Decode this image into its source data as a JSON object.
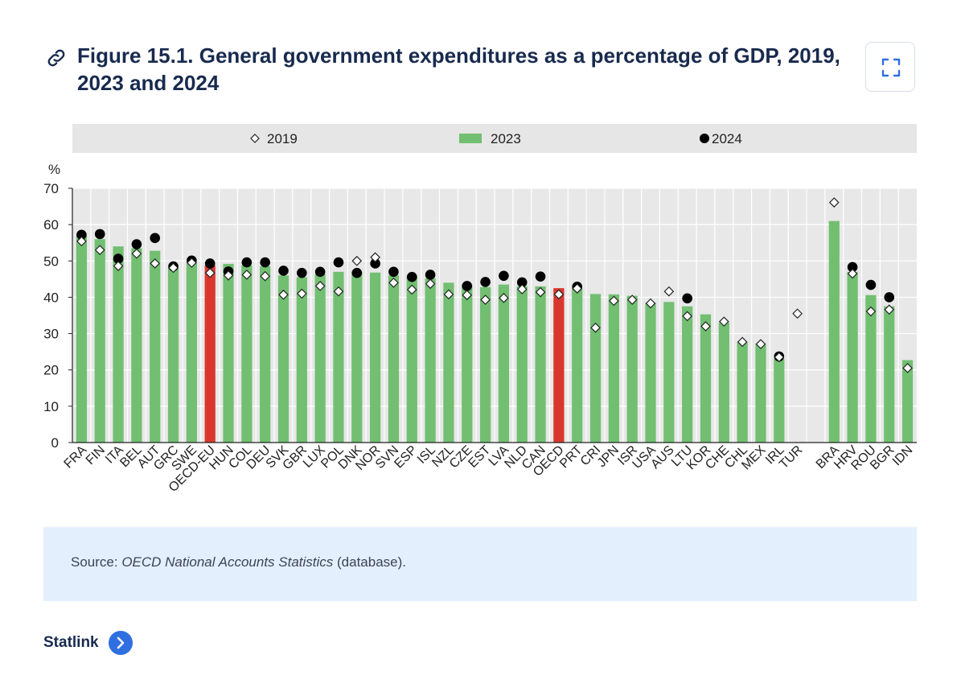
{
  "header": {
    "title": "Figure 15.1. General government expenditures as a percentage of GDP, 2019, 2023 and 2024"
  },
  "source": {
    "prefix": "Source: ",
    "database": "OECD National Accounts Statistics",
    "suffix": " (database)."
  },
  "statlink": {
    "label": "Statlink"
  },
  "chart_data": {
    "type": "bar",
    "title": "",
    "ylabel": "%",
    "xlabel": "",
    "ylim": [
      0,
      70
    ],
    "yticks": [
      0,
      10,
      20,
      30,
      40,
      50,
      60,
      70
    ],
    "legend": [
      "2019",
      "2023",
      "2024"
    ],
    "legend_position": "top",
    "colors": {
      "bar": "#72bf72",
      "highlight": "#d9372e",
      "grid_bg": "#e8e8e8"
    },
    "categories": [
      "FRA",
      "FIN",
      "ITA",
      "BEL",
      "AUT",
      "GRC",
      "SWE",
      "OECD-EU",
      "HUN",
      "COL",
      "DEU",
      "SVK",
      "GBR",
      "LUX",
      "POL",
      "DNK",
      "NOR",
      "SVN",
      "ESP",
      "ISL",
      "NZL",
      "CZE",
      "EST",
      "LVA",
      "NLD",
      "CAN",
      "OECD",
      "PRT",
      "CRI",
      "JPN",
      "ISR",
      "USA",
      "AUS",
      "LTU",
      "KOR",
      "CHE",
      "CHL",
      "MEX",
      "IRL",
      "TUR",
      "",
      "BRA",
      "HRV",
      "ROU",
      "BGR",
      "IDN"
    ],
    "highlighted": [
      "OECD-EU",
      "OECD"
    ],
    "series": [
      {
        "name": "2019",
        "marker": "diamond",
        "values": [
          55.4,
          53.0,
          48.6,
          52.0,
          49.3,
          48.1,
          49.5,
          46.7,
          46.0,
          46.2,
          45.8,
          40.7,
          41.0,
          43.1,
          41.6,
          50.0,
          51.0,
          44.0,
          42.1,
          43.7,
          40.8,
          40.6,
          39.3,
          39.8,
          42.2,
          41.4,
          40.8,
          42.4,
          31.6,
          39.0,
          39.3,
          38.3,
          41.6,
          34.8,
          32.0,
          33.3,
          27.7,
          27.1,
          23.5,
          35.5,
          null,
          66.1,
          46.5,
          36.1,
          36.6,
          20.5
        ]
      },
      {
        "name": "2023",
        "marker": "bar",
        "values": [
          57.0,
          56.0,
          54.0,
          53.5,
          52.8,
          48.3,
          49.5,
          48.7,
          49.2,
          48.8,
          48.5,
          46.0,
          45.5,
          46.3,
          47.0,
          47.0,
          46.8,
          46.0,
          45.8,
          45.2,
          44.0,
          43.5,
          42.8,
          43.5,
          43.0,
          43.0,
          42.5,
          42.5,
          40.9,
          40.8,
          40.4,
          38.5,
          38.7,
          37.5,
          35.3,
          33.0,
          27.6,
          27.2,
          23.0,
          null,
          null,
          61.0,
          47.0,
          40.6,
          37.5,
          22.7
        ]
      },
      {
        "name": "2024",
        "marker": "dot",
        "values": [
          57.2,
          57.4,
          50.6,
          54.6,
          56.3,
          48.5,
          50.1,
          49.3,
          47.1,
          49.6,
          49.6,
          47.3,
          46.7,
          47.0,
          49.6,
          46.7,
          49.3,
          47.0,
          45.6,
          46.2,
          null,
          43.1,
          44.2,
          45.9,
          44.1,
          45.7,
          null,
          42.9,
          null,
          null,
          null,
          null,
          null,
          39.7,
          null,
          null,
          null,
          null,
          23.7,
          null,
          null,
          null,
          48.3,
          43.4,
          40.0,
          null
        ]
      }
    ]
  }
}
